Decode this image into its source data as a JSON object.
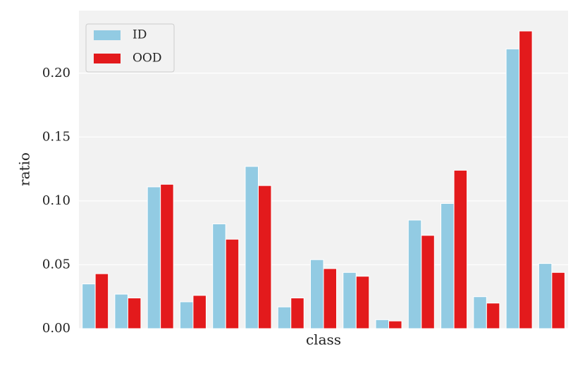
{
  "chart_data": {
    "type": "bar",
    "x_label": "class",
    "y_label": "ratio",
    "categories": [
      null,
      null,
      null,
      null,
      null,
      null,
      null,
      null,
      null,
      null,
      null,
      null,
      null,
      null,
      null
    ],
    "series": [
      {
        "name": "ID",
        "color": "#92cbe3",
        "values": [
          0.035,
          0.027,
          0.111,
          0.021,
          0.082,
          0.127,
          0.017,
          0.054,
          0.044,
          0.007,
          0.085,
          0.098,
          0.025,
          0.219,
          0.051
        ]
      },
      {
        "name": "OOD",
        "color": "#e31a1c",
        "values": [
          0.043,
          0.024,
          0.113,
          0.026,
          0.07,
          0.112,
          0.024,
          0.047,
          0.041,
          0.006,
          0.073,
          0.124,
          0.02,
          0.233,
          0.044
        ]
      }
    ],
    "ylim": [
      0,
      0.249
    ],
    "yticks": [
      {
        "value": 0,
        "label": "0.00"
      },
      {
        "value": 0.05,
        "label": "0.05"
      },
      {
        "value": 0.1,
        "label": "0.10"
      },
      {
        "value": 0.15,
        "label": "0.15"
      },
      {
        "value": 0.2,
        "label": "0.20"
      }
    ],
    "grid": true,
    "legend_position": "upper left"
  }
}
